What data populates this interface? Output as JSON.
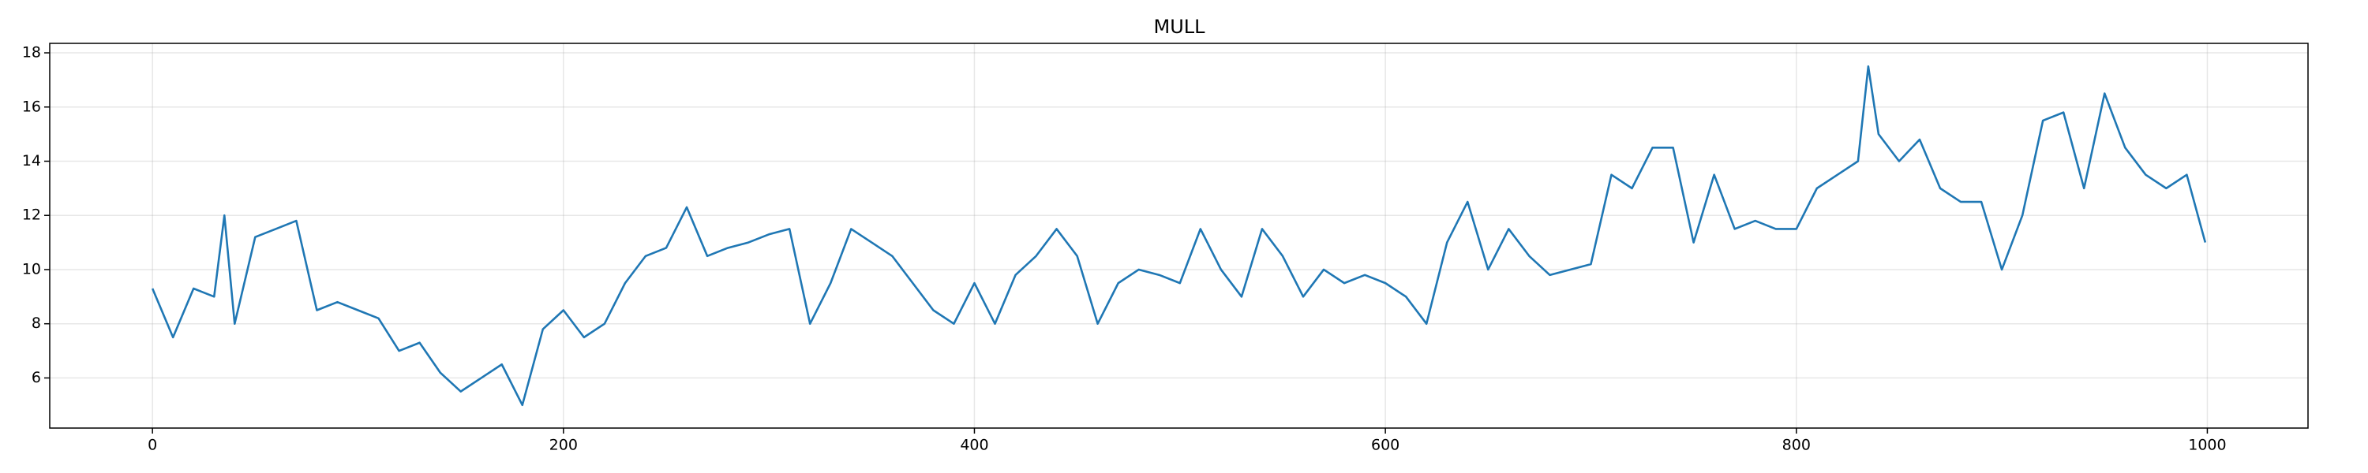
{
  "chart_data": {
    "type": "line",
    "title": "MULL",
    "x": [
      0,
      10,
      20,
      30,
      35,
      40,
      50,
      60,
      70,
      80,
      90,
      100,
      110,
      120,
      130,
      140,
      150,
      160,
      170,
      180,
      190,
      200,
      210,
      220,
      230,
      240,
      250,
      260,
      270,
      280,
      290,
      300,
      310,
      320,
      330,
      340,
      350,
      360,
      370,
      380,
      390,
      400,
      410,
      420,
      430,
      440,
      450,
      460,
      470,
      480,
      490,
      500,
      510,
      520,
      530,
      540,
      550,
      560,
      570,
      580,
      590,
      600,
      610,
      620,
      630,
      640,
      650,
      660,
      670,
      680,
      690,
      700,
      710,
      720,
      730,
      740,
      750,
      760,
      770,
      780,
      790,
      800,
      810,
      820,
      830,
      835,
      840,
      850,
      860,
      870,
      880,
      890,
      900,
      910,
      920,
      930,
      940,
      950,
      960,
      970,
      980,
      990,
      999
    ],
    "series": [
      {
        "name": "MULL",
        "color": "#1f77b4",
        "values": [
          9.3,
          7.5,
          9.3,
          9.0,
          12.0,
          8.0,
          11.2,
          11.5,
          11.8,
          8.5,
          8.8,
          8.5,
          8.2,
          7.0,
          7.3,
          6.2,
          5.5,
          6.0,
          6.5,
          5.0,
          7.8,
          8.5,
          7.5,
          8.0,
          9.5,
          10.5,
          10.8,
          12.3,
          10.5,
          10.8,
          11.0,
          11.3,
          11.5,
          8.0,
          9.5,
          11.5,
          11.0,
          10.5,
          9.5,
          8.5,
          8.0,
          9.5,
          8.0,
          9.8,
          10.5,
          11.5,
          10.5,
          8.0,
          9.5,
          10.0,
          9.8,
          9.5,
          11.5,
          10.0,
          9.0,
          11.5,
          10.5,
          9.0,
          10.0,
          9.5,
          9.8,
          9.5,
          9.0,
          8.0,
          11.0,
          12.5,
          10.0,
          11.5,
          10.5,
          9.8,
          10.0,
          10.2,
          13.5,
          13.0,
          14.5,
          14.5,
          11.0,
          13.5,
          11.5,
          11.8,
          11.5,
          11.5,
          13.0,
          13.5,
          14.0,
          17.5,
          15.0,
          14.0,
          14.8,
          13.0,
          12.5,
          12.5,
          10.0,
          12.0,
          15.5,
          15.8,
          13.0,
          16.5,
          14.5,
          13.5,
          13.0,
          13.5,
          11.0
        ]
      }
    ],
    "xlim": [
      -50,
      1049
    ],
    "ylim": [
      4.15,
      18.35
    ],
    "xticks": [
      0,
      200,
      400,
      600,
      800,
      1000
    ],
    "yticks": [
      6,
      8,
      10,
      12,
      14,
      16,
      18
    ],
    "grid": true
  }
}
